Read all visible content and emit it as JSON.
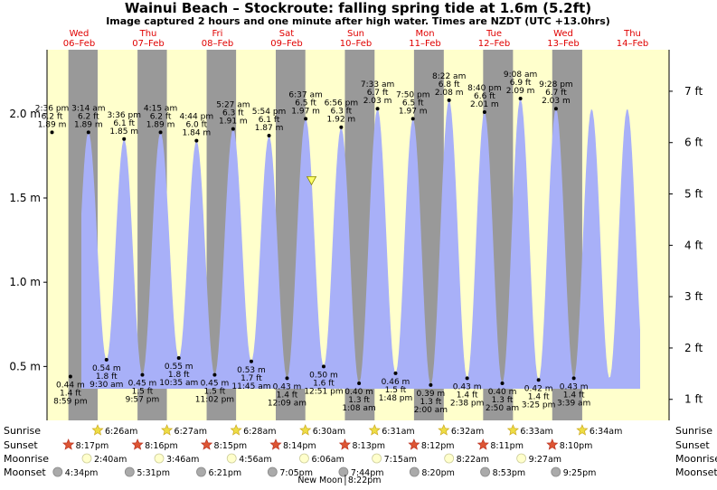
{
  "title": "Wainui Beach – Stockroute: falling  spring tide at 1.6m (5.2ft)",
  "subtitle": "Image captured 2 hours and one minute after high water. Times are NZDT (UTC +13.0hrs)",
  "days": [
    {
      "dow": "Wed",
      "date": "06–Feb"
    },
    {
      "dow": "Thu",
      "date": "07–Feb"
    },
    {
      "dow": "Fri",
      "date": "08–Feb"
    },
    {
      "dow": "Sat",
      "date": "09–Feb"
    },
    {
      "dow": "Sun",
      "date": "10–Feb"
    },
    {
      "dow": "Mon",
      "date": "11–Feb"
    },
    {
      "dow": "Tue",
      "date": "12–Feb"
    },
    {
      "dow": "Wed",
      "date": "13–Feb"
    },
    {
      "dow": "Thu",
      "date": "14–Feb"
    }
  ],
  "chart_data": {
    "type": "area",
    "y_left_unit": "m",
    "y_right_unit": "ft",
    "y_left_ticks": [
      "0.5 m",
      "1.0 m",
      "1.5 m",
      "2.0 m"
    ],
    "y_right_ticks": [
      "1 ft",
      "2 ft",
      "3 ft",
      "4 ft",
      "5 ft",
      "6 ft",
      "7 ft"
    ],
    "ylim_m": [
      0.18,
      2.38
    ],
    "colors": {
      "tide": "#a8b0f8",
      "day": "#ffffcc",
      "night": "#999999",
      "day_label": "#e00000"
    },
    "tides": [
      {
        "type": "high",
        "time": "2:36 pm",
        "ft": "6.2 ft",
        "m": 1.89,
        "label": "1.89 m"
      },
      {
        "type": "low",
        "time": "8:59 pm",
        "ft": "1.4 ft",
        "m": 0.44,
        "label": "0.44 m"
      },
      {
        "type": "high",
        "time": "3:14 am",
        "ft": "6.2 ft",
        "m": 1.89,
        "label": "1.89 m"
      },
      {
        "type": "low",
        "time": "9:30 am",
        "ft": "1.8 ft",
        "m": 0.54,
        "label": "0.54 m"
      },
      {
        "type": "high",
        "time": "3:36 pm",
        "ft": "6.1 ft",
        "m": 1.85,
        "label": "1.85 m"
      },
      {
        "type": "low",
        "time": "9:57 pm",
        "ft": "1.5 ft",
        "m": 0.45,
        "label": "0.45 m"
      },
      {
        "type": "high",
        "time": "4:15 am",
        "ft": "6.2 ft",
        "m": 1.89,
        "label": "1.89 m"
      },
      {
        "type": "low",
        "time": "10:35 am",
        "ft": "1.8 ft",
        "m": 0.55,
        "label": "0.55 m"
      },
      {
        "type": "high",
        "time": "4:44 pm",
        "ft": "6.0 ft",
        "m": 1.84,
        "label": "1.84 m"
      },
      {
        "type": "low",
        "time": "11:02 pm",
        "ft": "1.5 ft",
        "m": 0.45,
        "label": "0.45 m"
      },
      {
        "type": "high",
        "time": "5:27 am",
        "ft": "6.3 ft",
        "m": 1.91,
        "label": "1.91 m"
      },
      {
        "type": "low",
        "time": "11:45 am",
        "ft": "1.7 ft",
        "m": 0.53,
        "label": "0.53 m"
      },
      {
        "type": "high",
        "time": "5:54 pm",
        "ft": "6.1 ft",
        "m": 1.87,
        "label": "1.87 m"
      },
      {
        "type": "low",
        "time": "12:09 am",
        "ft": "1.4 ft",
        "m": 0.43,
        "label": "0.43 m"
      },
      {
        "type": "high",
        "time": "6:37 am",
        "ft": "6.5 ft",
        "m": 1.97,
        "label": "1.97 m"
      },
      {
        "type": "low",
        "time": "12:51 pm",
        "ft": "1.6 ft",
        "m": 0.5,
        "label": "0.50 m"
      },
      {
        "type": "high",
        "time": "6:56 pm",
        "ft": "6.3 ft",
        "m": 1.92,
        "label": "1.92 m"
      },
      {
        "type": "low",
        "time": "1:08 am",
        "ft": "1.3 ft",
        "m": 0.4,
        "label": "0.40 m"
      },
      {
        "type": "high",
        "time": "7:33 am",
        "ft": "6.7 ft",
        "m": 2.03,
        "label": "2.03 m"
      },
      {
        "type": "low",
        "time": "1:48 pm",
        "ft": "1.5 ft",
        "m": 0.46,
        "label": "0.46 m"
      },
      {
        "type": "high",
        "time": "7:50 pm",
        "ft": "6.5 ft",
        "m": 1.97,
        "label": "1.97 m"
      },
      {
        "type": "low",
        "time": "2:00 am",
        "ft": "1.3 ft",
        "m": 0.39,
        "label": "0.39 m"
      },
      {
        "type": "high",
        "time": "8:22 am",
        "ft": "6.8 ft",
        "m": 2.08,
        "label": "2.08 m"
      },
      {
        "type": "low",
        "time": "2:38 pm",
        "ft": "1.4 ft",
        "m": 0.43,
        "label": "0.43 m"
      },
      {
        "type": "high",
        "time": "8:40 pm",
        "ft": "6.6 ft",
        "m": 2.01,
        "label": "2.01 m"
      },
      {
        "type": "low",
        "time": "2:50 am",
        "ft": "1.3 ft",
        "m": 0.4,
        "label": "0.40 m"
      },
      {
        "type": "high",
        "time": "9:08 am",
        "ft": "6.9 ft",
        "m": 2.09,
        "label": "2.09 m"
      },
      {
        "type": "low",
        "time": "3:25 pm",
        "ft": "1.4 ft",
        "m": 0.42,
        "label": "0.42 m"
      },
      {
        "type": "high",
        "time": "9:28 pm",
        "ft": "6.7 ft",
        "m": 2.03,
        "label": "2.03 m"
      },
      {
        "type": "low",
        "time": "3:39 am",
        "ft": "1.4 ft",
        "m": 0.43,
        "label": "0.43 m"
      }
    ],
    "current": {
      "height_m": 1.6
    }
  },
  "rows": {
    "sunrise": {
      "label": "Sunrise",
      "times": [
        "6:26am",
        "6:27am",
        "6:28am",
        "6:30am",
        "6:31am",
        "6:32am",
        "6:33am",
        "6:34am"
      ]
    },
    "sunset": {
      "label": "Sunset",
      "times": [
        "8:17pm",
        "8:16pm",
        "8:15pm",
        "8:14pm",
        "8:13pm",
        "8:12pm",
        "8:11pm",
        "8:10pm"
      ]
    },
    "moonrise": {
      "label": "Moonrise",
      "times": [
        "2:40am",
        "3:46am",
        "4:56am",
        "6:06am",
        "7:15am",
        "8:22am",
        "9:27am"
      ]
    },
    "moonset": {
      "label": "Moonset",
      "times": [
        "4:34pm",
        "5:31pm",
        "6:21pm",
        "7:05pm",
        "7:44pm",
        "8:20pm",
        "8:53pm",
        "9:25pm"
      ]
    },
    "new_moon": "New Moon",
    "new_moon_time": "8:22pm"
  }
}
